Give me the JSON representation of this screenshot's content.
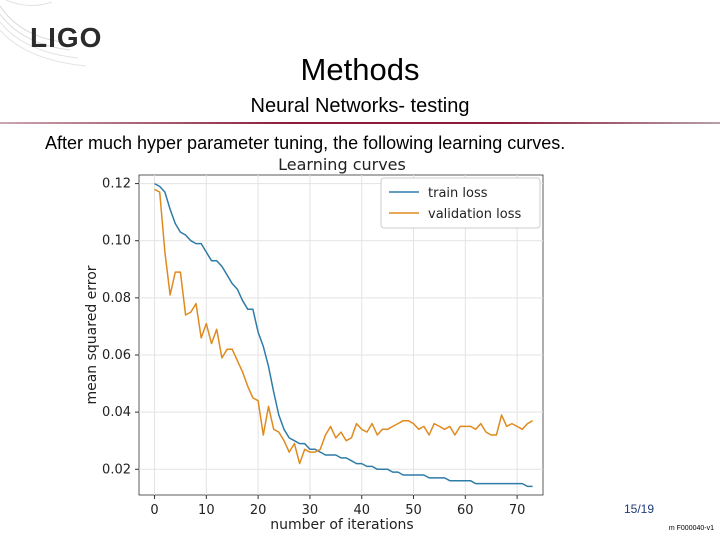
{
  "header": {
    "logo_text": "LIGO",
    "title": "Methods",
    "subtitle": "Neural Networks- testing"
  },
  "body": {
    "intro_text": "After much hyper parameter tuning, the following learning curves."
  },
  "footer": {
    "page_number": "15/19",
    "doc_id": "m F000040-v1"
  },
  "colors": {
    "train": "#2e7ca8",
    "validation": "#e08a1e",
    "divider": "#8a1d3a"
  },
  "chart_data": {
    "type": "line",
    "title": "Learning curves",
    "xlabel": "number of iterations",
    "ylabel": "mean squared error",
    "xlim": [
      -3,
      75
    ],
    "ylim": [
      0.011,
      0.123
    ],
    "xticks": [
      0,
      10,
      20,
      30,
      40,
      50,
      60,
      70
    ],
    "yticks": [
      0.02,
      0.04,
      0.06,
      0.08,
      0.1,
      0.12
    ],
    "ytick_labels": [
      "0.02",
      "0.04",
      "0.06",
      "0.08",
      "0.10",
      "0.12"
    ],
    "grid": true,
    "legend_position": "top-right",
    "x": [
      0,
      1,
      2,
      3,
      4,
      5,
      6,
      7,
      8,
      9,
      10,
      11,
      12,
      13,
      14,
      15,
      16,
      17,
      18,
      19,
      20,
      21,
      22,
      23,
      24,
      25,
      26,
      27,
      28,
      29,
      30,
      31,
      32,
      33,
      34,
      35,
      36,
      37,
      38,
      39,
      40,
      41,
      42,
      43,
      44,
      45,
      46,
      47,
      48,
      49,
      50,
      51,
      52,
      53,
      54,
      55,
      56,
      57,
      58,
      59,
      60,
      61,
      62,
      63,
      64,
      65,
      66,
      67,
      68,
      69,
      70,
      71,
      72,
      73
    ],
    "series": [
      {
        "name": "train loss",
        "values": [
          0.12,
          0.119,
          0.117,
          0.111,
          0.106,
          0.103,
          0.102,
          0.1,
          0.099,
          0.099,
          0.096,
          0.093,
          0.093,
          0.091,
          0.088,
          0.085,
          0.083,
          0.079,
          0.076,
          0.076,
          0.068,
          0.063,
          0.056,
          0.047,
          0.039,
          0.034,
          0.031,
          0.03,
          0.029,
          0.029,
          0.027,
          0.027,
          0.026,
          0.025,
          0.025,
          0.025,
          0.024,
          0.024,
          0.023,
          0.022,
          0.022,
          0.021,
          0.021,
          0.02,
          0.02,
          0.02,
          0.019,
          0.019,
          0.018,
          0.018,
          0.018,
          0.018,
          0.018,
          0.017,
          0.017,
          0.017,
          0.017,
          0.016,
          0.016,
          0.016,
          0.016,
          0.016,
          0.015,
          0.015,
          0.015,
          0.015,
          0.015,
          0.015,
          0.015,
          0.015,
          0.015,
          0.015,
          0.014,
          0.014
        ]
      },
      {
        "name": "validation loss",
        "values": [
          0.118,
          0.117,
          0.096,
          0.081,
          0.089,
          0.089,
          0.074,
          0.075,
          0.078,
          0.066,
          0.071,
          0.064,
          0.069,
          0.059,
          0.062,
          0.062,
          0.058,
          0.054,
          0.049,
          0.045,
          0.044,
          0.032,
          0.042,
          0.034,
          0.033,
          0.03,
          0.026,
          0.029,
          0.022,
          0.027,
          0.026,
          0.026,
          0.027,
          0.032,
          0.035,
          0.031,
          0.033,
          0.03,
          0.031,
          0.036,
          0.034,
          0.033,
          0.036,
          0.032,
          0.034,
          0.034,
          0.035,
          0.036,
          0.037,
          0.037,
          0.036,
          0.034,
          0.035,
          0.032,
          0.036,
          0.035,
          0.034,
          0.035,
          0.032,
          0.035,
          0.035,
          0.035,
          0.034,
          0.036,
          0.033,
          0.032,
          0.032,
          0.039,
          0.035,
          0.036,
          0.035,
          0.034,
          0.036,
          0.037
        ]
      }
    ]
  }
}
